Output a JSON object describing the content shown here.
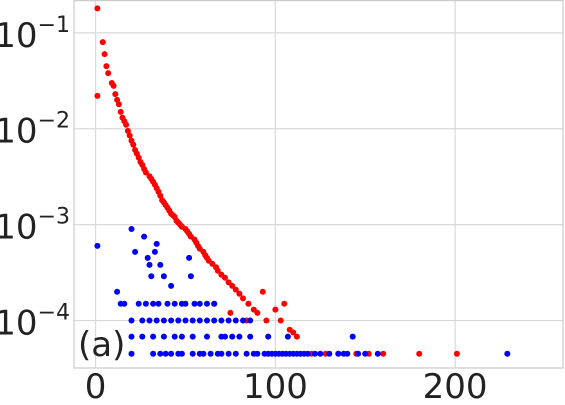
{
  "chart_data": {
    "type": "scatter",
    "title": "",
    "xlabel": "",
    "ylabel": "",
    "panel_label": "(a)",
    "xlim": [
      -12,
      260
    ],
    "ylim": [
      3.2e-05,
      0.22
    ],
    "yscale": "log",
    "grid": true,
    "legend": "none",
    "xticks": [
      {
        "value": 0,
        "label": "0"
      },
      {
        "value": 100,
        "label": "100"
      },
      {
        "value": 200,
        "label": "200"
      }
    ],
    "yticks": [
      {
        "value": 0.1,
        "base": "10",
        "exp": "−1"
      },
      {
        "value": 0.01,
        "base": "10",
        "exp": "−2"
      },
      {
        "value": 0.001,
        "base": "10",
        "exp": "−3"
      },
      {
        "value": 0.0001,
        "base": "10",
        "exp": "−4"
      }
    ],
    "series": [
      {
        "color": "#ff0000",
        "points": [
          [
            1,
            0.18
          ],
          [
            3,
            0.24
          ],
          [
            1,
            0.022
          ],
          [
            4,
            0.08
          ],
          [
            5,
            0.06
          ],
          [
            6,
            0.045
          ],
          [
            7,
            0.038
          ],
          [
            9,
            0.03
          ],
          [
            10,
            0.028
          ],
          [
            11,
            0.023
          ],
          [
            12,
            0.02
          ],
          [
            13,
            0.018
          ],
          [
            14,
            0.015
          ],
          [
            15,
            0.013
          ],
          [
            16,
            0.012
          ],
          [
            17,
            0.011
          ],
          [
            18,
            0.0095
          ],
          [
            19,
            0.0085
          ],
          [
            20,
            0.0075
          ],
          [
            21,
            0.0068
          ],
          [
            22,
            0.006
          ],
          [
            23,
            0.0055
          ],
          [
            24,
            0.005
          ],
          [
            25,
            0.0045
          ],
          [
            26,
            0.0042
          ],
          [
            27,
            0.0038
          ],
          [
            28,
            0.0035
          ],
          [
            30,
            0.0032
          ],
          [
            31,
            0.003
          ],
          [
            32,
            0.0028
          ],
          [
            33,
            0.0026
          ],
          [
            34,
            0.0024
          ],
          [
            35,
            0.0022
          ],
          [
            36,
            0.002
          ],
          [
            37,
            0.0018
          ],
          [
            38,
            0.0017
          ],
          [
            39,
            0.0016
          ],
          [
            40,
            0.0015
          ],
          [
            41,
            0.0014
          ],
          [
            42,
            0.0013
          ],
          [
            43,
            0.00125
          ],
          [
            44,
            0.0012
          ],
          [
            45,
            0.0011
          ],
          [
            46,
            0.00105
          ],
          [
            47,
            0.001
          ],
          [
            48,
            0.00095
          ],
          [
            50,
            0.0009
          ],
          [
            51,
            0.00085
          ],
          [
            52,
            0.0008
          ],
          [
            53,
            0.00075
          ],
          [
            55,
            0.0007
          ],
          [
            56,
            0.00065
          ],
          [
            57,
            0.0006
          ],
          [
            58,
            0.00056
          ],
          [
            60,
            0.00052
          ],
          [
            61,
            0.00048
          ],
          [
            62,
            0.00045
          ],
          [
            63,
            0.00042
          ],
          [
            65,
            0.00039
          ],
          [
            67,
            0.00036
          ],
          [
            68,
            0.00033
          ],
          [
            70,
            0.0003
          ],
          [
            72,
            0.00028
          ],
          [
            74,
            0.00025
          ],
          [
            76,
            0.00023
          ],
          [
            78,
            0.00021
          ],
          [
            80,
            0.00019
          ],
          [
            82,
            0.00017
          ],
          [
            85,
            0.00015
          ],
          [
            88,
            0.00013
          ],
          [
            90,
            0.00012
          ],
          [
            95,
            0.0001
          ],
          [
            100,
            0.00013
          ],
          [
            103,
            0.0001
          ],
          [
            108,
            8e-05
          ],
          [
            112,
            6.8e-05
          ],
          [
            66,
            0.00015
          ],
          [
            75,
            0.00012
          ],
          [
            84,
            0.0001
          ],
          [
            93,
            0.0002
          ],
          [
            105,
            0.00015
          ],
          [
            110,
            7.5e-05
          ],
          [
            120,
            4.5e-05
          ],
          [
            128,
            4.5e-05
          ],
          [
            135,
            4.5e-05
          ],
          [
            145,
            4.5e-05
          ],
          [
            152,
            4.5e-05
          ],
          [
            160,
            4.5e-05
          ],
          [
            180,
            4.5e-05
          ],
          [
            201,
            4.5e-05
          ]
        ]
      },
      {
        "color": "#0000ff",
        "points": [
          [
            1,
            0.0006
          ],
          [
            20,
            0.0009
          ],
          [
            22,
            0.00052
          ],
          [
            27,
            0.00075
          ],
          [
            29,
            0.00045
          ],
          [
            30,
            0.00038
          ],
          [
            31,
            0.00029
          ],
          [
            33,
            0.00052
          ],
          [
            34,
            0.00063
          ],
          [
            36,
            0.00038
          ],
          [
            38,
            0.00029
          ],
          [
            42,
            0.00023
          ],
          [
            52,
            0.00045
          ],
          [
            53,
            0.00029
          ],
          [
            12,
            0.0002
          ],
          [
            14,
            0.00015
          ],
          [
            16,
            0.00015
          ],
          [
            24,
            0.00015
          ],
          [
            28,
            0.00015
          ],
          [
            32,
            0.00015
          ],
          [
            35,
            0.00015
          ],
          [
            40,
            0.00015
          ],
          [
            44,
            0.00015
          ],
          [
            48,
            0.00015
          ],
          [
            50,
            0.00015
          ],
          [
            55,
            0.00015
          ],
          [
            58,
            0.00015
          ],
          [
            62,
            0.00015
          ],
          [
            66,
            0.00015
          ],
          [
            20,
            0.0001
          ],
          [
            26,
            0.0001
          ],
          [
            30,
            0.0001
          ],
          [
            34,
            0.0001
          ],
          [
            38,
            0.0001
          ],
          [
            42,
            0.0001
          ],
          [
            46,
            0.0001
          ],
          [
            50,
            0.0001
          ],
          [
            54,
            0.0001
          ],
          [
            58,
            0.0001
          ],
          [
            62,
            0.0001
          ],
          [
            66,
            0.0001
          ],
          [
            70,
            0.0001
          ],
          [
            74,
            0.0001
          ],
          [
            78,
            0.0001
          ],
          [
            82,
            0.0001
          ],
          [
            86,
            0.0001
          ],
          [
            20,
            6.8e-05
          ],
          [
            26,
            6.8e-05
          ],
          [
            32,
            6.8e-05
          ],
          [
            38,
            6.8e-05
          ],
          [
            44,
            6.8e-05
          ],
          [
            48,
            6.8e-05
          ],
          [
            54,
            6.8e-05
          ],
          [
            62,
            6.8e-05
          ],
          [
            70,
            6.8e-05
          ],
          [
            72,
            6.8e-05
          ],
          [
            76,
            6.8e-05
          ],
          [
            80,
            6.8e-05
          ],
          [
            86,
            6.8e-05
          ],
          [
            96,
            6.8e-05
          ],
          [
            107,
            6.8e-05
          ],
          [
            143,
            6.8e-05
          ],
          [
            20,
            4.5e-05
          ],
          [
            32,
            4.5e-05
          ],
          [
            36,
            4.5e-05
          ],
          [
            39,
            4.5e-05
          ],
          [
            42,
            4.5e-05
          ],
          [
            46,
            4.5e-05
          ],
          [
            48,
            4.5e-05
          ],
          [
            54,
            4.5e-05
          ],
          [
            58,
            4.5e-05
          ],
          [
            60,
            4.5e-05
          ],
          [
            64,
            4.5e-05
          ],
          [
            68,
            4.5e-05
          ],
          [
            70,
            4.5e-05
          ],
          [
            74,
            4.5e-05
          ],
          [
            78,
            4.5e-05
          ],
          [
            84,
            4.5e-05
          ],
          [
            88,
            4.5e-05
          ],
          [
            90,
            4.5e-05
          ],
          [
            94,
            4.5e-05
          ],
          [
            96,
            4.5e-05
          ],
          [
            98,
            4.5e-05
          ],
          [
            100,
            4.5e-05
          ],
          [
            102,
            4.5e-05
          ],
          [
            104,
            4.5e-05
          ],
          [
            106,
            4.5e-05
          ],
          [
            108,
            4.5e-05
          ],
          [
            110,
            4.5e-05
          ],
          [
            112,
            4.5e-05
          ],
          [
            114,
            4.5e-05
          ],
          [
            116,
            4.5e-05
          ],
          [
            118,
            4.5e-05
          ],
          [
            122,
            4.5e-05
          ],
          [
            125,
            4.5e-05
          ],
          [
            130,
            4.5e-05
          ],
          [
            135,
            4.5e-05
          ],
          [
            138,
            4.5e-05
          ],
          [
            140,
            4.5e-05
          ],
          [
            146,
            4.5e-05
          ],
          [
            150,
            4.5e-05
          ],
          [
            157,
            4.5e-05
          ],
          [
            229,
            4.5e-05
          ]
        ]
      }
    ]
  }
}
